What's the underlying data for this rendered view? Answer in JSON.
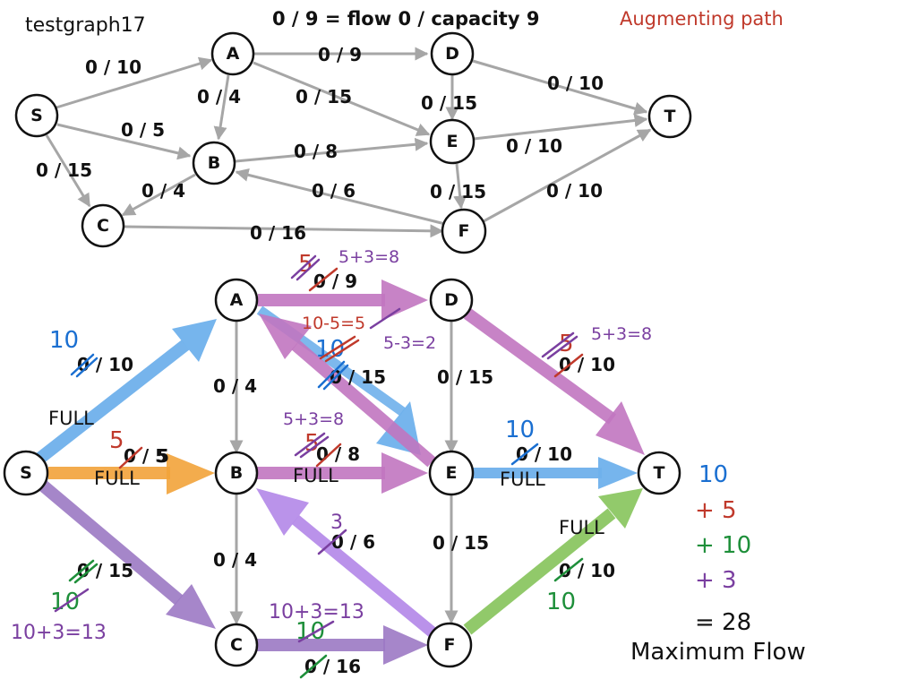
{
  "header": {
    "graph_name": "testgraph17",
    "legend": "0 / 9 = flow 0 / capacity 9",
    "augmenting_label": "Augmenting path"
  },
  "colors": {
    "blue": "#1a6fd1",
    "red": "#c0392b",
    "green": "#1e8f3a",
    "purple": "#7a3fa0",
    "orange": "#f2a33a",
    "magenta": "#c176c0",
    "edge_gray": "#a6a6a6"
  },
  "top_graph": {
    "nodes": [
      "S",
      "A",
      "B",
      "C",
      "D",
      "E",
      "F",
      "T"
    ],
    "edges": [
      {
        "from": "S",
        "to": "A",
        "label": "0 / 10"
      },
      {
        "from": "S",
        "to": "B",
        "label": "0 / 5"
      },
      {
        "from": "S",
        "to": "C",
        "label": "0 / 15"
      },
      {
        "from": "A",
        "to": "B",
        "label": "0 / 4"
      },
      {
        "from": "A",
        "to": "D",
        "label": "0 / 9"
      },
      {
        "from": "A",
        "to": "E",
        "label": "0 / 15"
      },
      {
        "from": "B",
        "to": "C",
        "label": "0 / 4"
      },
      {
        "from": "B",
        "to": "E",
        "label": "0 / 8"
      },
      {
        "from": "C",
        "to": "F",
        "label": "0 / 16"
      },
      {
        "from": "D",
        "to": "E",
        "label": "0 / 15"
      },
      {
        "from": "D",
        "to": "T",
        "label": "0 / 10"
      },
      {
        "from": "E",
        "to": "F",
        "label": "0 / 15"
      },
      {
        "from": "E",
        "to": "T",
        "label": "0 / 10"
      },
      {
        "from": "F",
        "to": "B",
        "label": "0 / 6"
      },
      {
        "from": "F",
        "to": "T",
        "label": "0 / 10"
      }
    ]
  },
  "bottom_graph": {
    "nodes": [
      "S",
      "A",
      "B",
      "C",
      "D",
      "E",
      "F",
      "T"
    ],
    "edge_labels": {
      "SA": "0 / 10",
      "SB": "0 / 5",
      "SC": "0 / 15",
      "AB": "0 / 4",
      "AD": "0 / 9",
      "AE": "0 / 15",
      "BC": "0 / 4",
      "BE": "0 / 8",
      "CF": "0 / 16",
      "DE": "0 / 15",
      "DT": "0 / 10",
      "EF": "0 / 15",
      "ET": "0 / 10",
      "FB": "0 / 6",
      "FT": "0 / 10"
    },
    "annotations": {
      "sa_blue": "10",
      "sa_full": "FULL",
      "sb_red": "5",
      "sb_orange": "5",
      "sb_full": "FULL",
      "sc_green": "10",
      "sc_purple": "10+3=13",
      "ad_red": "5",
      "ad_purple": "5+3=8",
      "ae_redcalc": "10-5=5",
      "ae_blue": "10",
      "ae_purple": "5-3=2",
      "be_purple": "5+3=8",
      "be_red": "5",
      "be_full": "FULL",
      "dt_red": "5",
      "dt_purple": "5+3=8",
      "et_blue": "10",
      "et_full": "FULL",
      "fb_purple": "3",
      "ft_full": "FULL",
      "ft_green": "10",
      "cf_purple": "10+3=13",
      "cf_green": "10"
    }
  },
  "sum": {
    "terms": [
      "10",
      "+ 5",
      "+ 10",
      "+ 3"
    ],
    "total": "= 28",
    "caption": "Maximum Flow"
  }
}
